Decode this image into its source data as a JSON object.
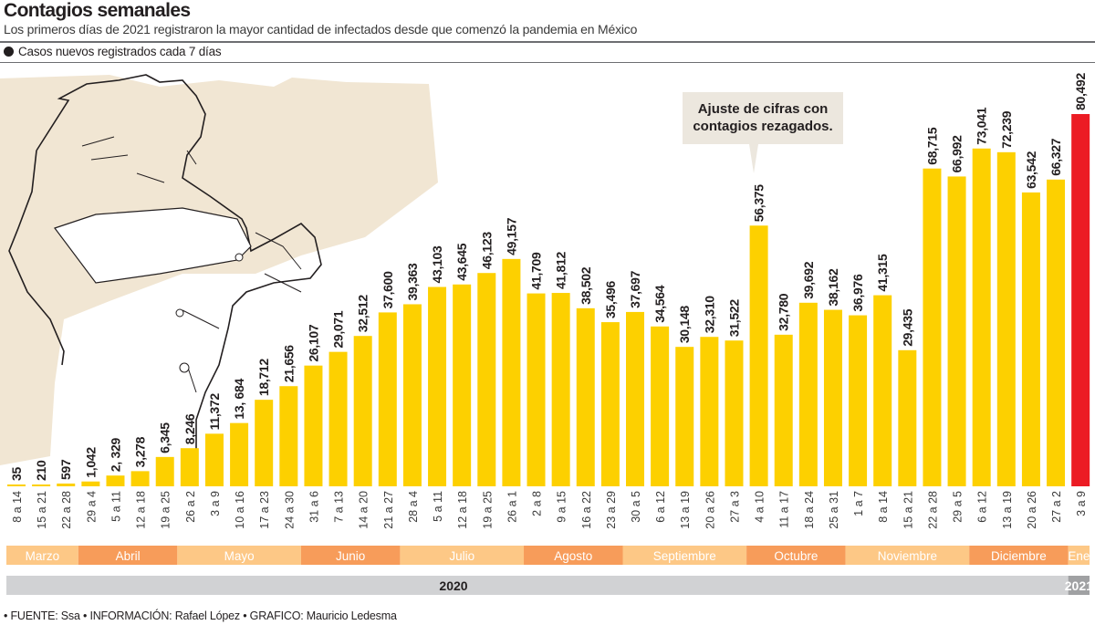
{
  "header": {
    "title": "Contagios semanales",
    "subtitle": "Los primeros días de 2021 registraron la mayor cantidad de infectados desde que comenzó la pandemia en México",
    "legend_label": "Casos nuevos registrados cada 7 días"
  },
  "callout": {
    "line1": "Ajuste de cifras con",
    "line2": "contagios rezagados.",
    "target_category": "4 a 10"
  },
  "footer": {
    "credits": "• FUENTE: Ssa • INFORMACIÓN: Rafael López • GRAFICO: Mauricio Ledesma"
  },
  "colors": {
    "bar": "#FDD000",
    "highlight_bar": "#EC1C24",
    "month_light": "#FDC886",
    "month_dark": "#F79C5A",
    "year_band": "#D1D2D4",
    "year_2021_box": "#A0A1A3",
    "illustration_bg": "#EDE0C8"
  },
  "chart_data": {
    "type": "bar",
    "title": "Contagios semanales",
    "subtitle": "Los primeros días de 2021 registraron la mayor cantidad de infectados desde que comenzó la pandemia en México",
    "xlabel": "",
    "ylabel": "Casos nuevos registrados cada 7 días",
    "ylim": [
      0,
      80492
    ],
    "grid": false,
    "legend": "top-left",
    "categories": [
      "8 a 14",
      "15 a 21",
      "22 a 28",
      "29 a 4",
      "5 a 11",
      "12 a 18",
      "19 a 25",
      "26 a 2",
      "3 a 9",
      "10 a 16",
      "17 a 23",
      "24 a 30",
      "31 a 6",
      "7 a 13",
      "14 a 20",
      "21 a 27",
      "28 a 4",
      "5 a 11",
      "12 a 18",
      "19 a 25",
      "26 a 1",
      "2 a 8",
      "9 a 15",
      "16 a 22",
      "23 a 29",
      "30 a 5",
      "6 a 12",
      "13 a 19",
      "20 a 26",
      "27 a 3",
      "4 a 10",
      "11 a 17",
      "18 a 24",
      "25 a 31",
      "1 a 7",
      "8 a 14",
      "15 a 21",
      "22 a 28",
      "29 a 5",
      "6 a 12",
      "13 a 19",
      "20 a 26",
      "27 a 2",
      "3 a 9"
    ],
    "values": [
      35,
      210,
      597,
      1042,
      2329,
      3278,
      6345,
      8246,
      11372,
      13684,
      18712,
      21656,
      26107,
      29071,
      32512,
      37600,
      39363,
      43103,
      43645,
      46123,
      49157,
      41709,
      41812,
      38502,
      35496,
      37697,
      34564,
      30148,
      32310,
      31522,
      56375,
      32780,
      39692,
      38162,
      36976,
      41315,
      29435,
      68715,
      66992,
      73041,
      72239,
      63542,
      66327,
      80492
    ],
    "value_labels": [
      "35",
      "210",
      "597",
      "1,042",
      "2, 329",
      "3,278",
      "6,345",
      "8,246",
      "11,372",
      "13, 684",
      "18,712",
      "21,656",
      "26,107",
      "29,071",
      "32,512",
      "37,600",
      "39,363",
      "43,103",
      "43,645",
      "46,123",
      "49,157",
      "41,709",
      "41,812",
      "38,502",
      "35,496",
      "37,697",
      "34,564",
      "30,148",
      "32,310",
      "31,522",
      "56,375",
      "32,780",
      "39,692",
      "38,162",
      "36,976",
      "41,315",
      "29,435",
      "68,715",
      "66,992",
      "73,041",
      "72,239",
      "63,542",
      "66,327",
      "80,492"
    ],
    "highlight_index": 43,
    "months": [
      {
        "label": "Marzo",
        "start": 0,
        "count": 3,
        "shade": "light"
      },
      {
        "label": "Abril",
        "start": 3,
        "count": 4,
        "shade": "dark"
      },
      {
        "label": "Mayo",
        "start": 7,
        "count": 5,
        "shade": "light"
      },
      {
        "label": "Junio",
        "start": 12,
        "count": 4,
        "shade": "dark"
      },
      {
        "label": "Julio",
        "start": 16,
        "count": 5,
        "shade": "light"
      },
      {
        "label": "Agosto",
        "start": 21,
        "count": 4,
        "shade": "dark"
      },
      {
        "label": "Septiembre",
        "start": 25,
        "count": 5,
        "shade": "light"
      },
      {
        "label": "Octubre",
        "start": 30,
        "count": 4,
        "shade": "dark"
      },
      {
        "label": "Noviembre",
        "start": 34,
        "count": 5,
        "shade": "light"
      },
      {
        "label": "Diciembre",
        "start": 39,
        "count": 4,
        "shade": "dark"
      },
      {
        "label": "Ene",
        "start": 43,
        "count": 1,
        "shade": "light"
      }
    ],
    "years": [
      {
        "label": "2020",
        "start": 0,
        "count": 43
      },
      {
        "label": "2021",
        "start": 43,
        "count": 1
      }
    ]
  }
}
